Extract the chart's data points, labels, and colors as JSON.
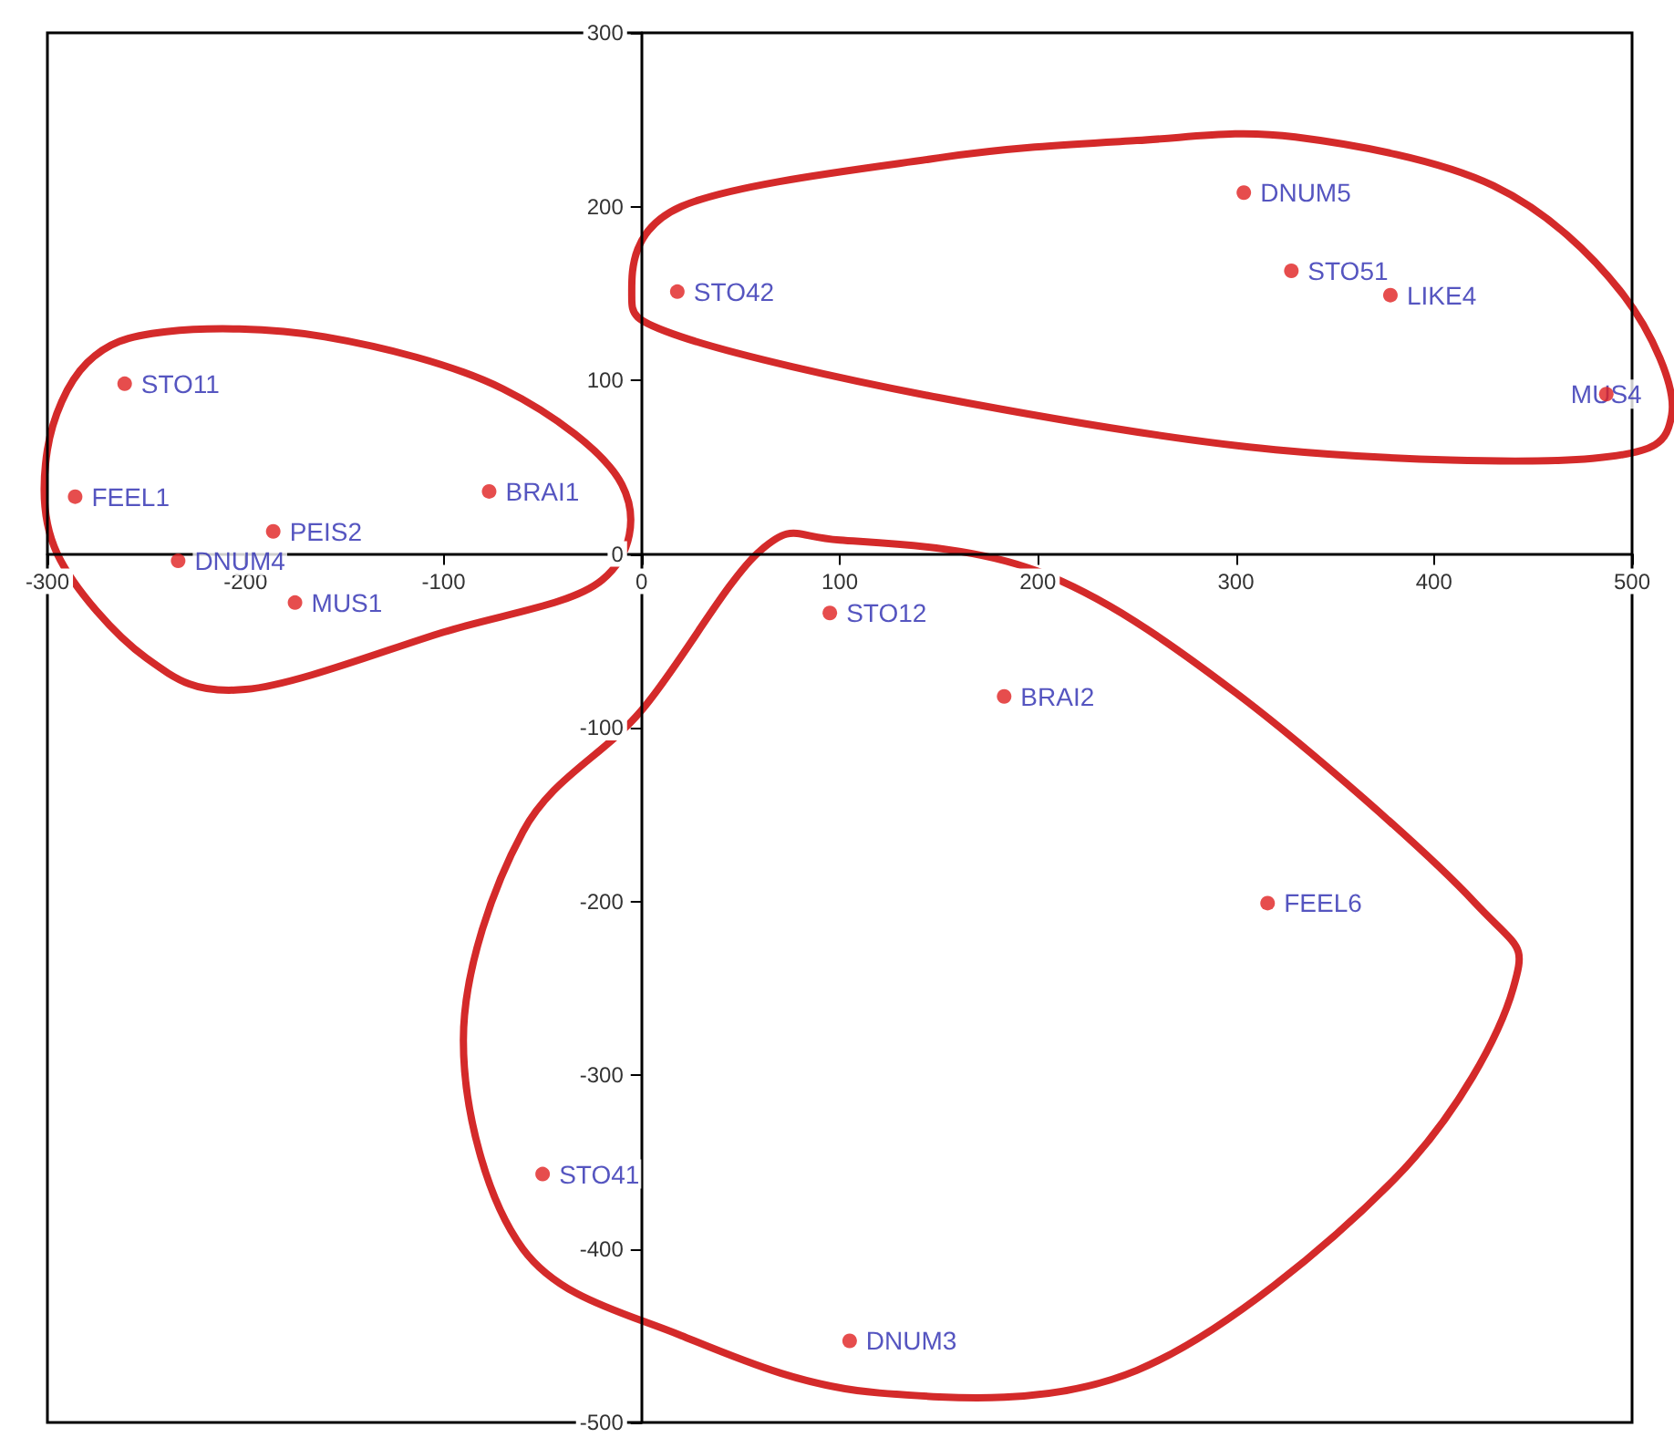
{
  "chart_data": {
    "type": "scatter",
    "x": [
      -261,
      -286,
      -186,
      -234,
      -175,
      -77,
      18,
      304,
      328,
      378,
      487,
      95,
      183,
      316,
      -50,
      105
    ],
    "series": [
      {
        "color": "#e02020",
        "values": [
          98,
          33,
          13,
          -4,
          -28,
          36,
          151,
          208,
          163,
          149,
          92,
          -34,
          -82,
          -201,
          -357,
          -453
        ]
      }
    ],
    "annotations": [
      {
        "text": "STO11",
        "x": -261,
        "y": 98
      },
      {
        "text": "FEEL1",
        "x": -286,
        "y": 33
      },
      {
        "text": "PEIS2",
        "x": -186,
        "y": 13
      },
      {
        "text": "DNUM4",
        "x": -234,
        "y": -4
      },
      {
        "text": "MUS1",
        "x": -175,
        "y": -28
      },
      {
        "text": "BRAI1",
        "x": -77,
        "y": 36
      },
      {
        "text": "STO42",
        "x": 18,
        "y": 151
      },
      {
        "text": "DNUM5",
        "x": 304,
        "y": 208
      },
      {
        "text": "STO51",
        "x": 328,
        "y": 163
      },
      {
        "text": "LIKE4",
        "x": 378,
        "y": 149
      },
      {
        "text": "MUS4",
        "x": 487,
        "y": 92
      },
      {
        "text": "STO12",
        "x": 95,
        "y": -34
      },
      {
        "text": "BRAI2",
        "x": 183,
        "y": -82
      },
      {
        "text": "FEEL6",
        "x": 316,
        "y": -201
      },
      {
        "text": "STO41",
        "x": -50,
        "y": -357
      },
      {
        "text": "DNUM3",
        "x": 105,
        "y": -453
      }
    ],
    "xlim": [
      -300,
      500
    ],
    "xticks": [
      -300,
      -200,
      -100,
      0,
      100,
      200,
      300,
      400,
      500
    ],
    "ylim": [
      -500,
      300
    ],
    "yticks": [
      -500,
      -400,
      -300,
      -200,
      -100,
      0,
      100,
      200,
      300
    ],
    "grid": false,
    "marker": "circle"
  }
}
